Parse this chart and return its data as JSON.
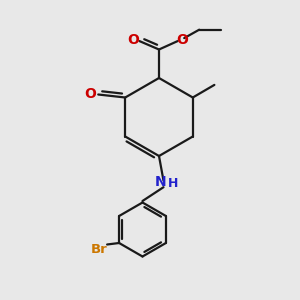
{
  "background_color": "#e8e8e8",
  "bond_color": "#1a1a1a",
  "oxygen_color": "#cc0000",
  "nitrogen_color": "#2222cc",
  "bromine_color": "#cc7700",
  "line_width": 1.6,
  "figsize": [
    3.0,
    3.0
  ],
  "dpi": 100,
  "xlim": [
    0,
    10
  ],
  "ylim": [
    0,
    10
  ]
}
